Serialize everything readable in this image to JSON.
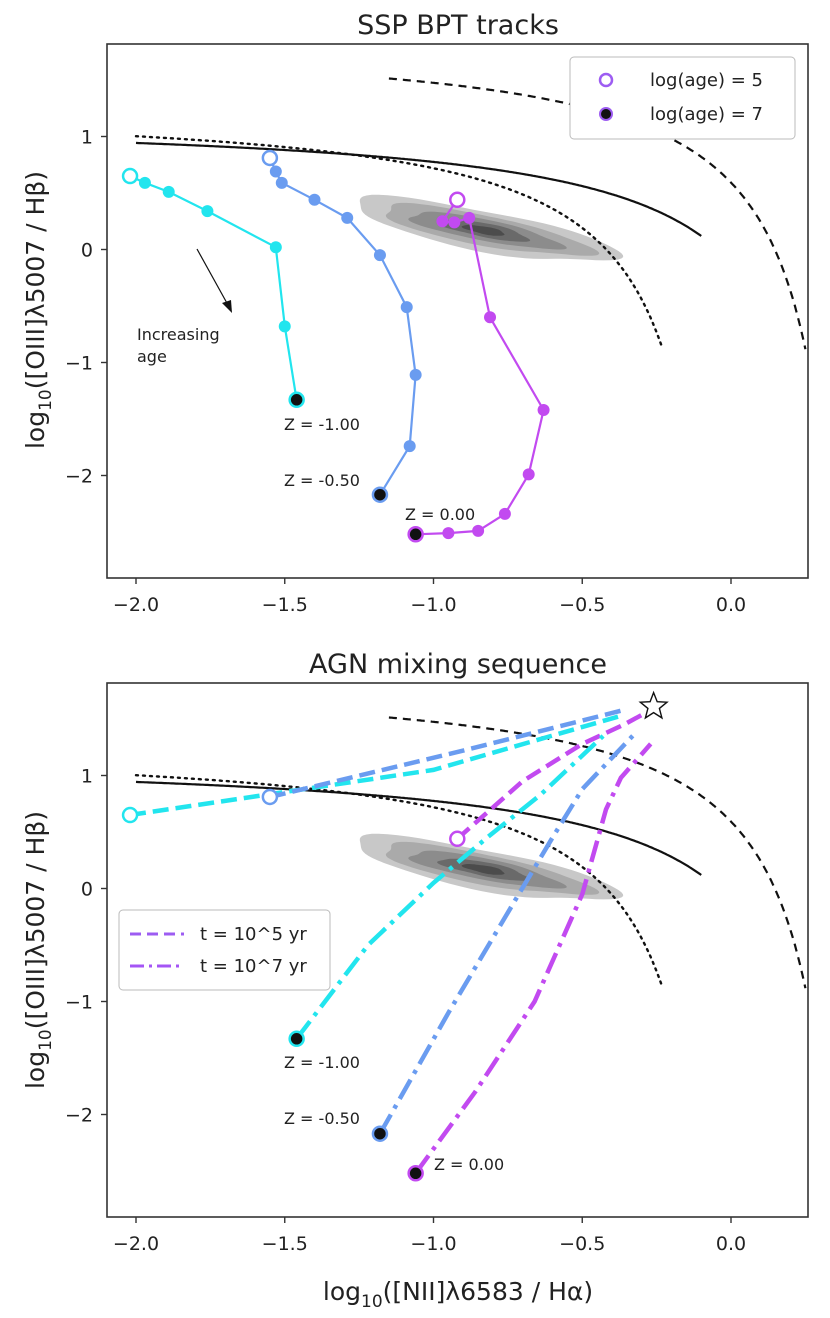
{
  "chart_data": [
    {
      "type": "line",
      "title": "SSP BPT tracks",
      "xlabel": "log10([NII]λ6583 / Hα)",
      "ylabel": "log10([OIII]λ5007 / Hβ)",
      "xlim": [
        -2.1,
        0.25
      ],
      "ylim": [
        -2.9,
        1.85
      ],
      "xticks": [
        "−2.0",
        "−1.5",
        "−1.0",
        "−0.5",
        "0.0"
      ],
      "yticks": [
        "−2",
        "−1",
        "0",
        "1"
      ],
      "legend": {
        "placement": "top-right",
        "entries": [
          "log(age) = 5",
          "log(age) = 7"
        ]
      },
      "annotations": [
        "Increasing",
        "age"
      ],
      "series": [
        {
          "name": "Z = -1.00",
          "color": "#22e5ee",
          "x": [
            -2.02,
            -1.97,
            -1.89,
            -1.76,
            -1.53,
            -1.5,
            -1.46
          ],
          "y": [
            0.65,
            0.59,
            0.51,
            0.34,
            0.02,
            -0.68,
            -1.33
          ]
        },
        {
          "name": "Z = -0.50",
          "color": "#6a9cf0",
          "x": [
            -1.55,
            -1.53,
            -1.51,
            -1.4,
            -1.29,
            -1.18,
            -1.09,
            -1.06,
            -1.08,
            -1.18
          ],
          "y": [
            0.81,
            0.69,
            0.59,
            0.44,
            0.28,
            -0.05,
            -0.51,
            -1.11,
            -1.74,
            -2.17
          ]
        },
        {
          "name": "Z = 0.00",
          "color": "#c24af0",
          "x": [
            -0.92,
            -0.97,
            -0.93,
            -0.88,
            -0.81,
            -0.63,
            -0.68,
            -0.76,
            -0.85,
            -0.95,
            -1.06
          ],
          "y": [
            0.44,
            0.25,
            0.24,
            0.28,
            -0.6,
            -1.42,
            -1.99,
            -2.34,
            -2.49,
            -2.51,
            -2.52
          ]
        }
      ]
    },
    {
      "type": "line",
      "title": "AGN mixing sequence",
      "xlabel": "log10([NII]λ6583 / Hα)",
      "ylabel": "log10([OIII]λ5007 / Hβ)",
      "xlim": [
        -2.1,
        0.25
      ],
      "ylim": [
        -2.9,
        1.85
      ],
      "xticks": [
        "−2.0",
        "−1.5",
        "−1.0",
        "−0.5",
        "0.0"
      ],
      "yticks": [
        "−2",
        "−1",
        "0",
        "1"
      ],
      "legend": {
        "placement": "center-left",
        "entries": [
          "t = 10^5 yr",
          "t = 10^7 yr"
        ]
      },
      "agn_point": {
        "x": -0.26,
        "y": 1.61
      },
      "series": [
        {
          "name": "Z = -1.00, t = 10^5 yr",
          "color": "#22e5ee",
          "style": "dashed",
          "x": [
            -2.02,
            -1.0,
            -0.38
          ],
          "y": [
            0.65,
            1.05,
            1.52
          ]
        },
        {
          "name": "Z = -0.50, t = 10^5 yr",
          "color": "#6a9cf0",
          "style": "dashed",
          "x": [
            -1.55,
            -0.9,
            -0.36
          ],
          "y": [
            0.81,
            1.22,
            1.58
          ]
        },
        {
          "name": "Z = 0.00, t = 10^5 yr",
          "color": "#c24af0",
          "style": "dashed",
          "x": [
            -0.92,
            -0.7,
            -0.5,
            -0.36,
            -0.29
          ],
          "y": [
            0.44,
            0.95,
            1.28,
            1.45,
            1.55
          ]
        },
        {
          "name": "Z = -1.00, t = 10^7 yr",
          "color": "#22e5ee",
          "style": "dashdot",
          "x": [
            -1.46,
            -1.22,
            -1.0,
            -0.82,
            -0.64,
            -0.43
          ],
          "y": [
            -1.33,
            -0.5,
            0.05,
            0.45,
            0.83,
            1.35
          ]
        },
        {
          "name": "Z = -0.50, t = 10^7 yr",
          "color": "#6a9cf0",
          "style": "dashdot",
          "x": [
            -1.18,
            -0.95,
            -0.72,
            -0.6,
            -0.5,
            -0.32
          ],
          "y": [
            -2.17,
            -1.1,
            -0.08,
            0.45,
            0.88,
            1.38
          ]
        },
        {
          "name": "Z = 0.00, t = 10^7 yr",
          "color": "#c24af0",
          "style": "dashdot",
          "x": [
            -1.06,
            -0.86,
            -0.66,
            -0.5,
            -0.42,
            -0.37,
            -0.27
          ],
          "y": [
            -2.52,
            -1.8,
            -1.0,
            -0.05,
            0.7,
            0.98,
            1.28
          ]
        }
      ]
    }
  ],
  "labels": {
    "top_title": "SSP BPT tracks",
    "bottom_title": "AGN mixing sequence",
    "ylabel_pre": "log",
    "ylabel_sub": "10",
    "ylabel_post": "([OIII]λ5007 / Hβ)",
    "xlabel_pre": "log",
    "xlabel_sub": "10",
    "xlabel_post": "([NII]λ6583 / Hα)",
    "xtick_labels": [
      "−2.0",
      "−1.5",
      "−1.0",
      "−0.5",
      "0.0"
    ],
    "ytick_labels": [
      "−2",
      "−1",
      "0",
      "1"
    ],
    "z_labels": [
      "Z = -1.00",
      "Z = -0.50",
      "Z = 0.00"
    ],
    "increasing": "Increasing",
    "age": "age",
    "legend_top": [
      "log(age) = 5",
      "log(age) = 7"
    ],
    "legend_bottom": [
      "t = 10^5 yr",
      "t = 10^7 yr"
    ]
  },
  "colors": {
    "cyan": "#22e5ee",
    "blue": "#6a9cf0",
    "magenta": "#c24af0",
    "legend_purple": "#9d5cf2",
    "legend_violet": "#a455f5"
  }
}
